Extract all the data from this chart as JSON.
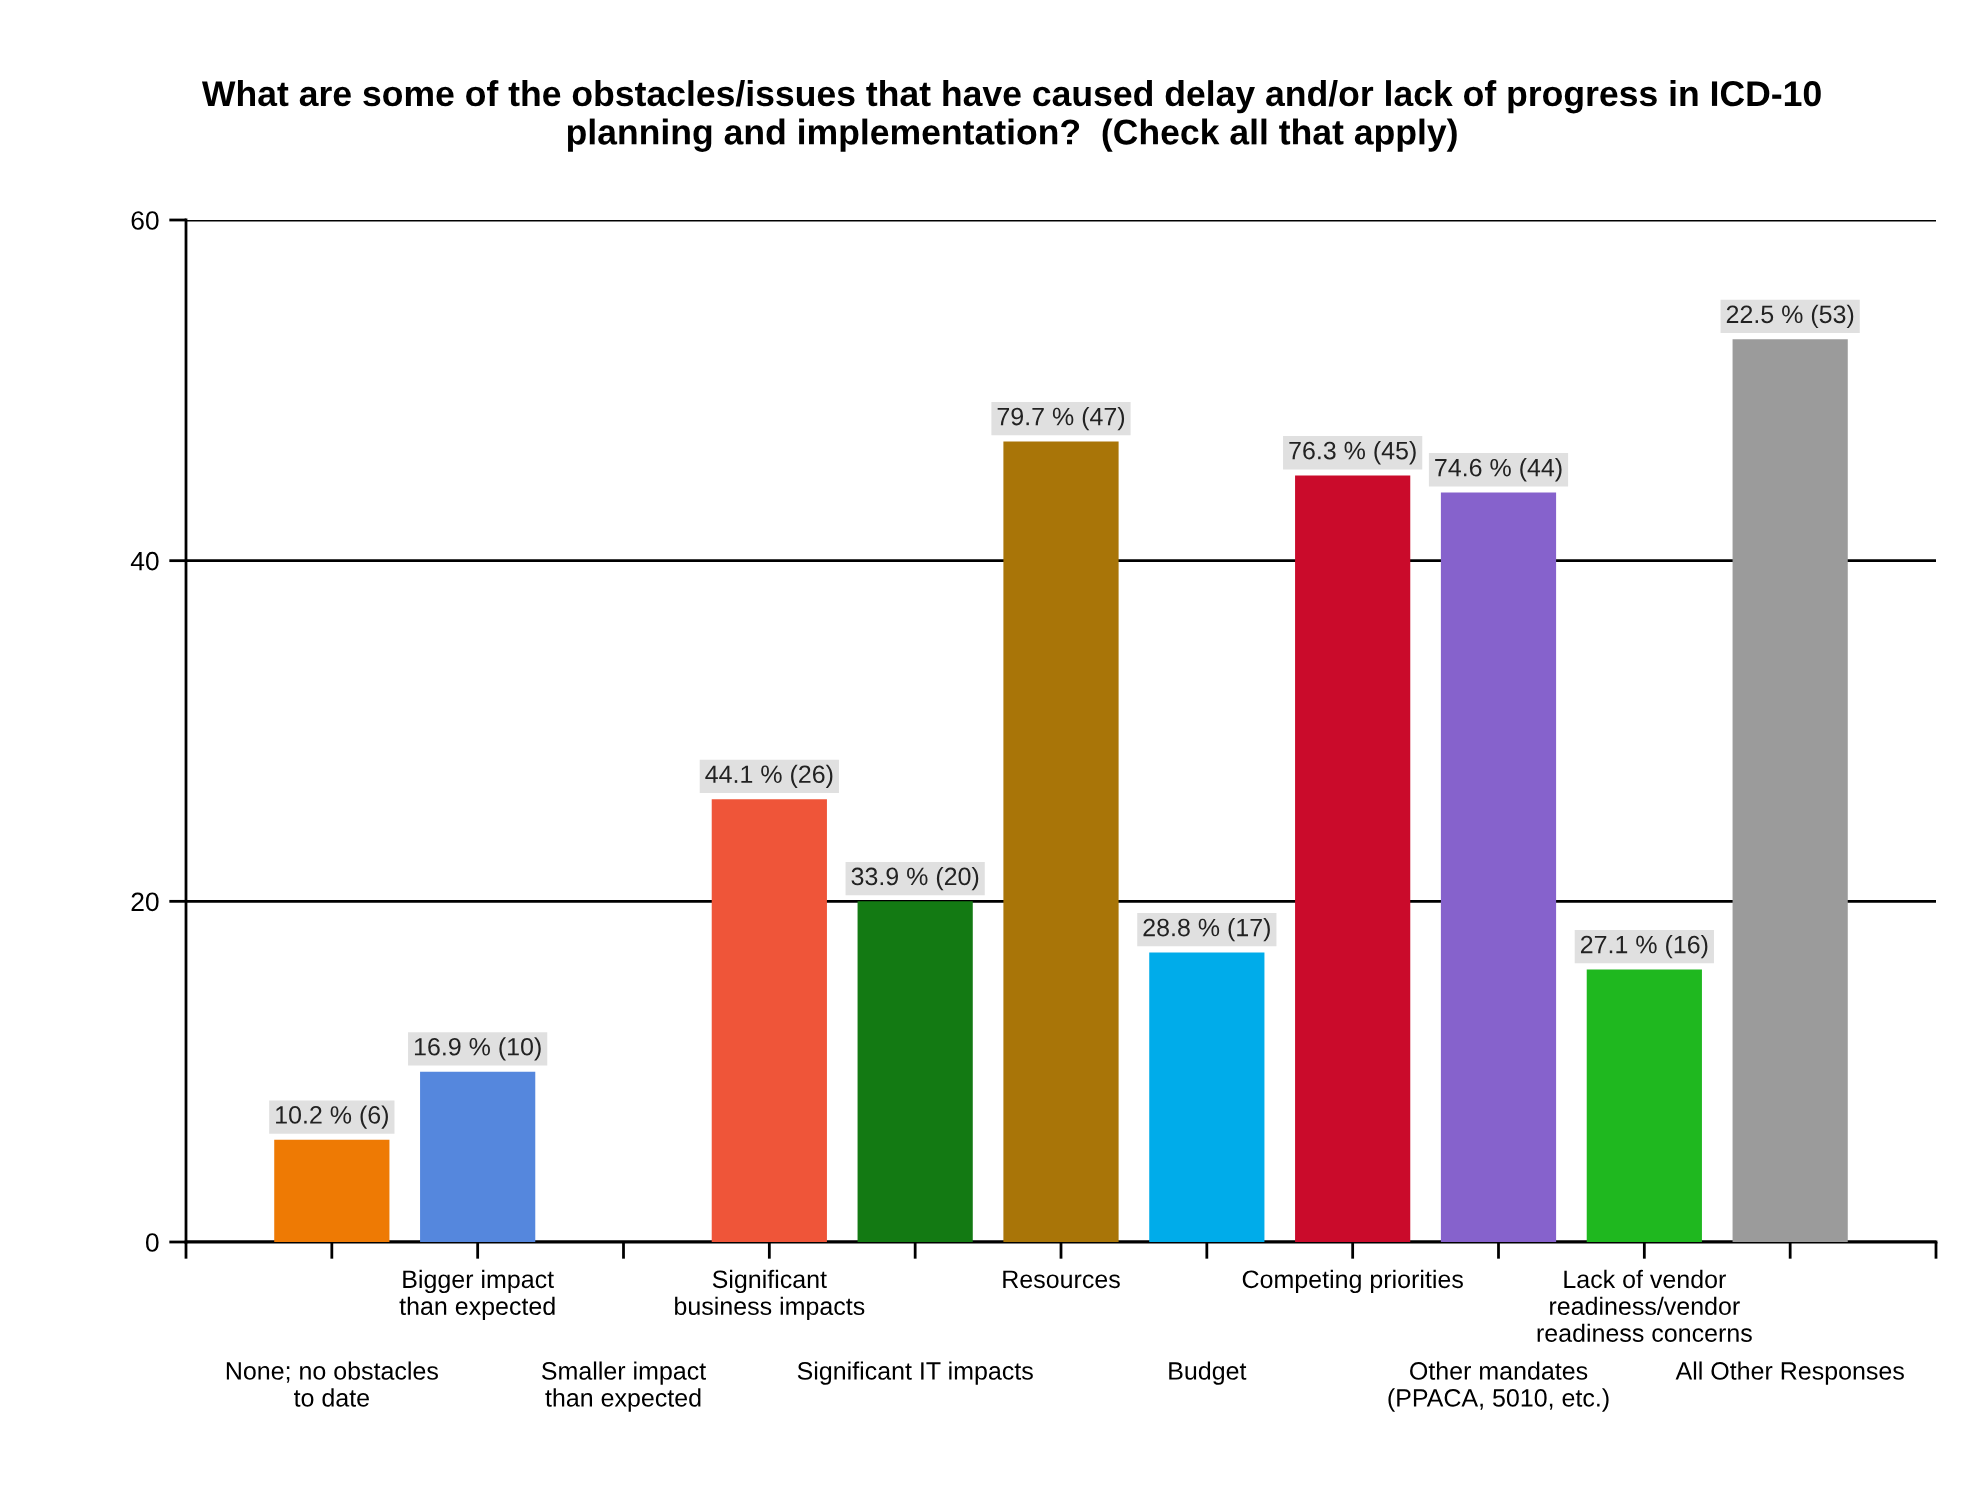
{
  "chart_data": {
    "type": "bar",
    "title": "What are some of the obstacles/issues that have caused delay and/or lack of progress in ICD-10\nplanning and implementation?  (Check all that apply)",
    "categories": [
      "None; no obstacles\nto date",
      "Bigger impact\nthan expected",
      "Smaller impact\nthan expected",
      "Significant\nbusiness impacts",
      "Significant IT impacts",
      "Resources",
      "Budget",
      "Competing priorities",
      "Other mandates\n(PPACA, 5010, etc.)",
      "Lack of vendor\nreadiness/vendor\nreadiness concerns",
      "All Other Responses"
    ],
    "values": [
      6,
      10,
      null,
      26,
      20,
      47,
      17,
      45,
      44,
      16,
      53
    ],
    "value_labels": [
      "10.2 % (6)",
      "16.9 % (10)",
      null,
      "44.1 % (26)",
      "33.9 % (20)",
      "79.7 % (47)",
      "28.8 % (17)",
      "76.3 % (45)",
      "74.6 % (44)",
      "27.1 % (16)",
      "22.5 % (53)"
    ],
    "colors": [
      "#ee7a04",
      "#5587dd",
      null,
      "#ef5539",
      "#137a13",
      "#a97508",
      "#00acea",
      "#ca0b2b",
      "#8662cc",
      "#1fb81f",
      "#9b9b9b"
    ],
    "ylim": [
      0,
      60
    ],
    "yticks": [
      0,
      20,
      40,
      60
    ],
    "grid": "y"
  }
}
